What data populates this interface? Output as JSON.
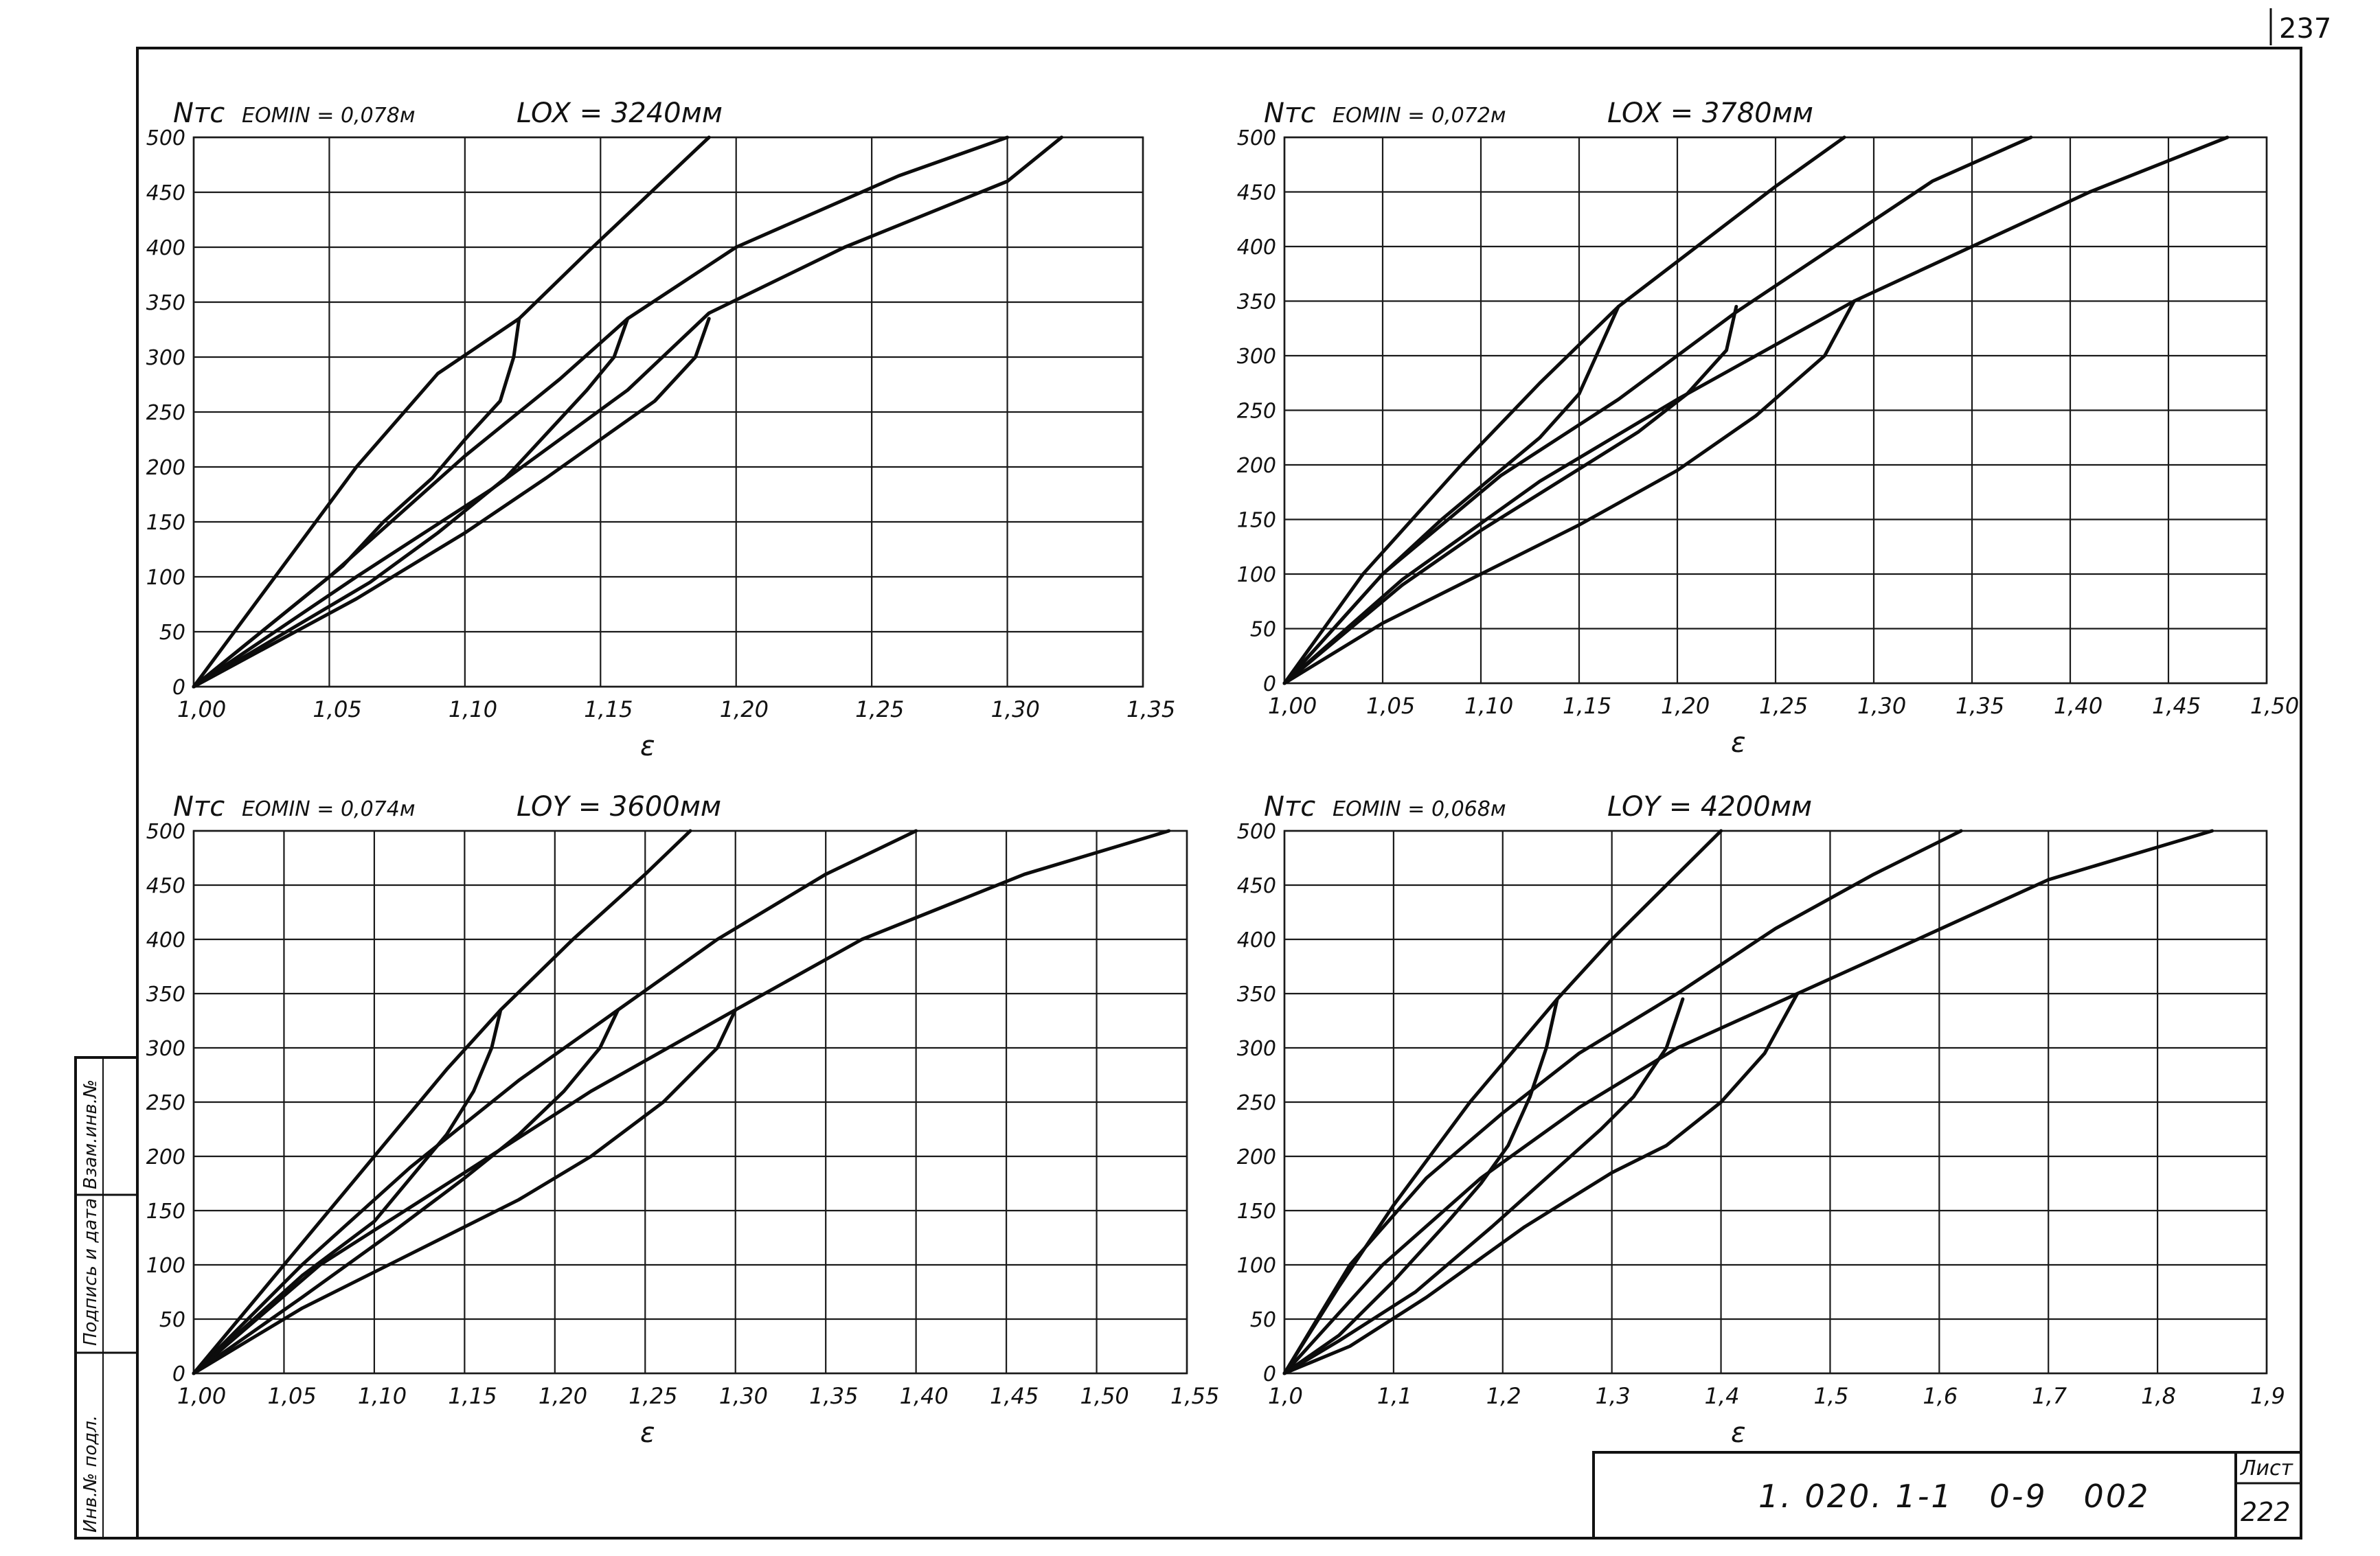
{
  "page_number": "237",
  "side_stamp": [
    "Инв.№ подл.",
    "Подпись и дата",
    "Взам.инв.№"
  ],
  "title_block": {
    "designation": "1. 020. 1-1   0-9   002",
    "sheet_label": "Лист",
    "sheet_number": "222"
  },
  "chart_data": [
    {
      "type": "line",
      "y_title": "Nтс",
      "x_title": "ε",
      "param_e": "EOMIN = 0,078м",
      "param_l": "LOX = 3240мм",
      "xlim": [
        1.0,
        1.35
      ],
      "ylim": [
        0,
        500
      ],
      "x_ticks": [
        "1,00",
        "1,05",
        "1,10",
        "1,15",
        "1,20",
        "1,25",
        "1,30",
        "1,35"
      ],
      "x_tick_values": [
        1.0,
        1.05,
        1.1,
        1.15,
        1.2,
        1.25,
        1.3,
        1.35
      ],
      "y_ticks": [
        "0",
        "50",
        "100",
        "150",
        "200",
        "250",
        "300",
        "350",
        "400",
        "450",
        "500"
      ],
      "y_tick_values": [
        0,
        50,
        100,
        150,
        200,
        250,
        300,
        350,
        400,
        450,
        500
      ],
      "series": [
        {
          "points": [
            [
              1.0,
              0
            ],
            [
              1.03,
              100
            ],
            [
              1.06,
              200
            ],
            [
              1.09,
              285
            ],
            [
              1.12,
              335
            ],
            [
              1.145,
              395
            ],
            [
              1.19,
              500
            ]
          ]
        },
        {
          "points": [
            [
              1.0,
              0
            ],
            [
              1.05,
              100
            ],
            [
              1.1,
              210
            ],
            [
              1.135,
              280
            ],
            [
              1.16,
              335
            ],
            [
              1.2,
              400
            ],
            [
              1.26,
              465
            ],
            [
              1.3,
              500
            ]
          ]
        },
        {
          "points": [
            [
              1.0,
              0
            ],
            [
              1.06,
              100
            ],
            [
              1.11,
              180
            ],
            [
              1.16,
              270
            ],
            [
              1.19,
              340
            ],
            [
              1.24,
              400
            ],
            [
              1.3,
              460
            ],
            [
              1.32,
              500
            ]
          ]
        },
        {
          "points": [
            [
              1.12,
              335
            ],
            [
              1.118,
              300
            ],
            [
              1.113,
              260
            ],
            [
              1.1,
              225
            ],
            [
              1.088,
              190
            ],
            [
              1.07,
              150
            ],
            [
              1.055,
              110
            ],
            [
              1.0,
              0
            ]
          ]
        },
        {
          "points": [
            [
              1.16,
              335
            ],
            [
              1.155,
              300
            ],
            [
              1.145,
              270
            ],
            [
              1.13,
              230
            ],
            [
              1.115,
              190
            ],
            [
              1.09,
              140
            ],
            [
              1.065,
              95
            ],
            [
              1.0,
              0
            ]
          ]
        },
        {
          "points": [
            [
              1.19,
              335
            ],
            [
              1.185,
              300
            ],
            [
              1.17,
              260
            ],
            [
              1.15,
              225
            ],
            [
              1.13,
              190
            ],
            [
              1.1,
              140
            ],
            [
              1.06,
              80
            ],
            [
              1.0,
              0
            ]
          ]
        }
      ]
    },
    {
      "type": "line",
      "y_title": "Nтс",
      "x_title": "ε",
      "param_e": "EOMIN = 0,072м",
      "param_l": "LOX = 3780мм",
      "xlim": [
        1.0,
        1.5
      ],
      "ylim": [
        0,
        500
      ],
      "x_ticks": [
        "1,00",
        "1,05",
        "1,10",
        "1,15",
        "1,20",
        "1,25",
        "1,30",
        "1,35",
        "1,40",
        "1,45",
        "1,50"
      ],
      "x_tick_values": [
        1.0,
        1.05,
        1.1,
        1.15,
        1.2,
        1.25,
        1.3,
        1.35,
        1.4,
        1.45,
        1.5
      ],
      "y_ticks": [
        "0",
        "50",
        "100",
        "150",
        "200",
        "250",
        "300",
        "350",
        "400",
        "450",
        "500"
      ],
      "y_tick_values": [
        0,
        50,
        100,
        150,
        200,
        250,
        300,
        350,
        400,
        450,
        500
      ],
      "series": [
        {
          "points": [
            [
              1.0,
              0
            ],
            [
              1.04,
              100
            ],
            [
              1.09,
              200
            ],
            [
              1.13,
              275
            ],
            [
              1.17,
              345
            ],
            [
              1.21,
              400
            ],
            [
              1.25,
              455
            ],
            [
              1.285,
              500
            ]
          ]
        },
        {
          "points": [
            [
              1.0,
              0
            ],
            [
              1.05,
              100
            ],
            [
              1.11,
              190
            ],
            [
              1.17,
              260
            ],
            [
              1.23,
              340
            ],
            [
              1.28,
              400
            ],
            [
              1.33,
              460
            ],
            [
              1.38,
              500
            ]
          ]
        },
        {
          "points": [
            [
              1.0,
              0
            ],
            [
              1.06,
              95
            ],
            [
              1.13,
              185
            ],
            [
              1.2,
              260
            ],
            [
              1.29,
              350
            ],
            [
              1.35,
              400
            ],
            [
              1.41,
              450
            ],
            [
              1.48,
              500
            ]
          ]
        },
        {
          "points": [
            [
              1.17,
              345
            ],
            [
              1.16,
              305
            ],
            [
              1.15,
              265
            ],
            [
              1.13,
              225
            ],
            [
              1.1,
              180
            ],
            [
              1.08,
              150
            ],
            [
              1.05,
              100
            ],
            [
              1.0,
              0
            ]
          ]
        },
        {
          "points": [
            [
              1.23,
              345
            ],
            [
              1.225,
              305
            ],
            [
              1.205,
              265
            ],
            [
              1.18,
              230
            ],
            [
              1.14,
              185
            ],
            [
              1.1,
              140
            ],
            [
              1.06,
              90
            ],
            [
              1.0,
              0
            ]
          ]
        },
        {
          "points": [
            [
              1.29,
              350
            ],
            [
              1.275,
              300
            ],
            [
              1.24,
              245
            ],
            [
              1.2,
              195
            ],
            [
              1.15,
              145
            ],
            [
              1.1,
              100
            ],
            [
              1.05,
              55
            ],
            [
              1.0,
              0
            ]
          ]
        }
      ]
    },
    {
      "type": "line",
      "y_title": "Nтс",
      "x_title": "ε",
      "param_e": "EOMIN = 0,074м",
      "param_l": "LOY = 3600мм",
      "xlim": [
        1.0,
        1.55
      ],
      "ylim": [
        0,
        500
      ],
      "x_ticks": [
        "1,00",
        "1,05",
        "1,10",
        "1,15",
        "1,20",
        "1,25",
        "1,30",
        "1,35",
        "1,40",
        "1,45",
        "1,50",
        "1,55"
      ],
      "x_tick_values": [
        1.0,
        1.05,
        1.1,
        1.15,
        1.2,
        1.25,
        1.3,
        1.35,
        1.4,
        1.45,
        1.5,
        1.55
      ],
      "y_ticks": [
        "0",
        "50",
        "100",
        "150",
        "200",
        "250",
        "300",
        "350",
        "400",
        "450",
        "500"
      ],
      "y_tick_values": [
        0,
        50,
        100,
        150,
        200,
        250,
        300,
        350,
        400,
        450,
        500
      ],
      "series": [
        {
          "points": [
            [
              1.0,
              0
            ],
            [
              1.05,
              100
            ],
            [
              1.1,
              200
            ],
            [
              1.14,
              280
            ],
            [
              1.17,
              335
            ],
            [
              1.21,
              400
            ],
            [
              1.25,
              460
            ],
            [
              1.275,
              500
            ]
          ]
        },
        {
          "points": [
            [
              1.0,
              0
            ],
            [
              1.06,
              100
            ],
            [
              1.12,
              190
            ],
            [
              1.18,
              270
            ],
            [
              1.235,
              335
            ],
            [
              1.29,
              400
            ],
            [
              1.35,
              460
            ],
            [
              1.4,
              500
            ]
          ]
        },
        {
          "points": [
            [
              1.0,
              0
            ],
            [
              1.07,
              100
            ],
            [
              1.15,
              185
            ],
            [
              1.22,
              260
            ],
            [
              1.3,
              335
            ],
            [
              1.37,
              400
            ],
            [
              1.46,
              460
            ],
            [
              1.54,
              500
            ]
          ]
        },
        {
          "points": [
            [
              1.17,
              335
            ],
            [
              1.165,
              300
            ],
            [
              1.155,
              260
            ],
            [
              1.14,
              220
            ],
            [
              1.12,
              180
            ],
            [
              1.1,
              140
            ],
            [
              1.06,
              90
            ],
            [
              1.0,
              0
            ]
          ]
        },
        {
          "points": [
            [
              1.235,
              335
            ],
            [
              1.225,
              300
            ],
            [
              1.205,
              260
            ],
            [
              1.18,
              220
            ],
            [
              1.15,
              180
            ],
            [
              1.11,
              130
            ],
            [
              1.06,
              70
            ],
            [
              1.0,
              0
            ]
          ]
        },
        {
          "points": [
            [
              1.3,
              335
            ],
            [
              1.29,
              300
            ],
            [
              1.26,
              250
            ],
            [
              1.22,
              200
            ],
            [
              1.18,
              160
            ],
            [
              1.12,
              110
            ],
            [
              1.06,
              60
            ],
            [
              1.0,
              0
            ]
          ]
        }
      ]
    },
    {
      "type": "line",
      "y_title": "Nтс",
      "x_title": "ε",
      "param_e": "EOMIN = 0,068м",
      "param_l": "LOY = 4200мм",
      "xlim": [
        1.0,
        1.9
      ],
      "ylim": [
        0,
        500
      ],
      "x_ticks": [
        "1,0",
        "1,1",
        "1,2",
        "1,3",
        "1,4",
        "1,5",
        "1,6",
        "1,7",
        "1,8",
        "1,9"
      ],
      "x_tick_values": [
        1.0,
        1.1,
        1.2,
        1.3,
        1.4,
        1.5,
        1.6,
        1.7,
        1.8,
        1.9
      ],
      "y_ticks": [
        "0",
        "50",
        "100",
        "150",
        "200",
        "250",
        "300",
        "350",
        "400",
        "450",
        "500"
      ],
      "y_tick_values": [
        0,
        50,
        100,
        150,
        200,
        250,
        300,
        350,
        400,
        450,
        500
      ],
      "series": [
        {
          "points": [
            [
              1.0,
              0
            ],
            [
              1.05,
              80
            ],
            [
              1.1,
              155
            ],
            [
              1.17,
              250
            ],
            [
              1.25,
              345
            ],
            [
              1.3,
              400
            ],
            [
              1.36,
              460
            ],
            [
              1.4,
              500
            ]
          ]
        },
        {
          "points": [
            [
              1.0,
              0
            ],
            [
              1.06,
              100
            ],
            [
              1.13,
              180
            ],
            [
              1.2,
              240
            ],
            [
              1.27,
              295
            ],
            [
              1.36,
              350
            ],
            [
              1.45,
              410
            ],
            [
              1.54,
              460
            ],
            [
              1.62,
              500
            ]
          ]
        },
        {
          "points": [
            [
              1.0,
              0
            ],
            [
              1.09,
              100
            ],
            [
              1.18,
              180
            ],
            [
              1.27,
              245
            ],
            [
              1.36,
              300
            ],
            [
              1.47,
              350
            ],
            [
              1.58,
              400
            ],
            [
              1.7,
              455
            ],
            [
              1.85,
              500
            ]
          ]
        },
        {
          "points": [
            [
              1.25,
              345
            ],
            [
              1.24,
              300
            ],
            [
              1.225,
              255
            ],
            [
              1.205,
              210
            ],
            [
              1.18,
              175
            ],
            [
              1.15,
              140
            ],
            [
              1.1,
              85
            ],
            [
              1.05,
              35
            ],
            [
              1.0,
              0
            ]
          ]
        },
        {
          "points": [
            [
              1.365,
              345
            ],
            [
              1.35,
              300
            ],
            [
              1.32,
              255
            ],
            [
              1.29,
              225
            ],
            [
              1.24,
              180
            ],
            [
              1.19,
              135
            ],
            [
              1.12,
              75
            ],
            [
              1.05,
              30
            ],
            [
              1.0,
              0
            ]
          ]
        },
        {
          "points": [
            [
              1.47,
              350
            ],
            [
              1.44,
              295
            ],
            [
              1.4,
              250
            ],
            [
              1.35,
              210
            ],
            [
              1.3,
              185
            ],
            [
              1.22,
              135
            ],
            [
              1.13,
              70
            ],
            [
              1.06,
              25
            ],
            [
              1.0,
              0
            ]
          ]
        }
      ]
    }
  ]
}
